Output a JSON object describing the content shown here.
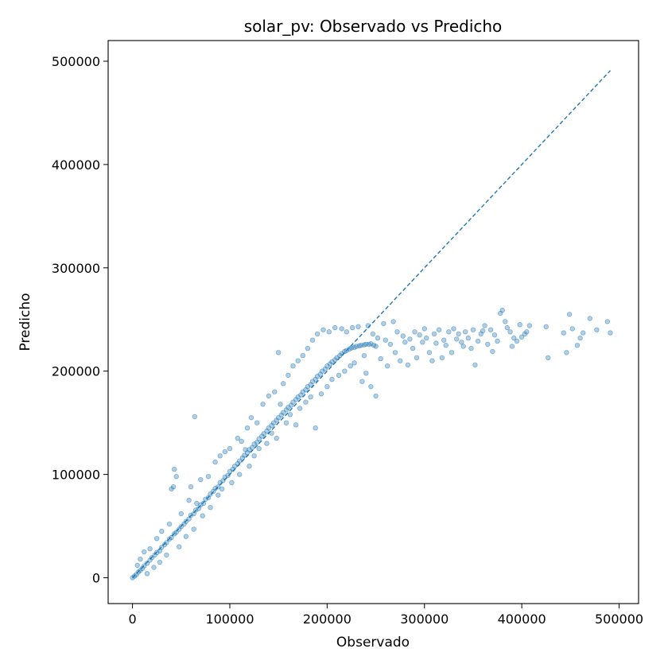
{
  "chart_data": {
    "type": "scatter",
    "title": "solar_pv: Observado vs Predicho",
    "xlabel": "Observado",
    "ylabel": "Predicho",
    "xlim": [
      -25000,
      520000
    ],
    "ylim": [
      -25000,
      520000
    ],
    "xticks": [
      0,
      100000,
      200000,
      300000,
      400000,
      500000
    ],
    "yticks": [
      0,
      100000,
      200000,
      300000,
      400000,
      500000
    ],
    "xtick_labels": [
      "0",
      "100000",
      "200000",
      "300000",
      "400000",
      "500000"
    ],
    "ytick_labels": [
      "0",
      "100000",
      "200000",
      "300000",
      "400000",
      "500000"
    ],
    "grid": false,
    "marker_color": "#1f77b4",
    "marker_alpha": 0.35,
    "reference_line": {
      "style": "dashed",
      "color": "#1f77b4",
      "from": [
        0,
        0
      ],
      "to": [
        491000,
        491000
      ]
    },
    "series": [
      {
        "points": [
          [
            0,
            0
          ],
          [
            2000,
            1500
          ],
          [
            4000,
            3000
          ],
          [
            6000,
            5500
          ],
          [
            8000,
            7000
          ],
          [
            10000,
            9000
          ],
          [
            12000,
            11500
          ],
          [
            15000,
            14000
          ],
          [
            18000,
            17000
          ],
          [
            20000,
            19500
          ],
          [
            23000,
            22000
          ],
          [
            25000,
            24500
          ],
          [
            28000,
            26000
          ],
          [
            30000,
            29500
          ],
          [
            33000,
            32000
          ],
          [
            35000,
            34000
          ],
          [
            38000,
            37500
          ],
          [
            40000,
            39000
          ],
          [
            43000,
            42500
          ],
          [
            45000,
            44000
          ],
          [
            48000,
            47000
          ],
          [
            50000,
            49500
          ],
          [
            53000,
            52000
          ],
          [
            55000,
            54500
          ],
          [
            58000,
            57000
          ],
          [
            60000,
            60500
          ],
          [
            63000,
            62000
          ],
          [
            65000,
            65500
          ],
          [
            68000,
            67000
          ],
          [
            70000,
            70500
          ],
          [
            73000,
            72000
          ],
          [
            75000,
            76000
          ],
          [
            78000,
            77500
          ],
          [
            80000,
            81000
          ],
          [
            83000,
            83500
          ],
          [
            85000,
            86500
          ],
          [
            88000,
            88000
          ],
          [
            90000,
            92000
          ],
          [
            93000,
            94000
          ],
          [
            95000,
            97500
          ],
          [
            98000,
            99000
          ],
          [
            100000,
            103000
          ],
          [
            103000,
            105000
          ],
          [
            105000,
            108000
          ],
          [
            108000,
            110500
          ],
          [
            110000,
            113000
          ],
          [
            113000,
            116000
          ],
          [
            115000,
            118500
          ],
          [
            118000,
            121000
          ],
          [
            120000,
            124000
          ],
          [
            123000,
            126000
          ],
          [
            125000,
            129500
          ],
          [
            128000,
            131000
          ],
          [
            130000,
            134500
          ],
          [
            133000,
            137000
          ],
          [
            135000,
            139500
          ],
          [
            138000,
            142000
          ],
          [
            140000,
            145000
          ],
          [
            143000,
            147500
          ],
          [
            145000,
            150000
          ],
          [
            148000,
            152500
          ],
          [
            150000,
            155000
          ],
          [
            153000,
            157500
          ],
          [
            155000,
            160000
          ],
          [
            158000,
            162500
          ],
          [
            160000,
            165000
          ],
          [
            163000,
            167000
          ],
          [
            165000,
            170000
          ],
          [
            168000,
            172500
          ],
          [
            170000,
            175000
          ],
          [
            173000,
            177000
          ],
          [
            175000,
            180000
          ],
          [
            178000,
            182000
          ],
          [
            180000,
            185000
          ],
          [
            183000,
            187000
          ],
          [
            185000,
            190000
          ],
          [
            188000,
            192000
          ],
          [
            190000,
            195000
          ],
          [
            193000,
            197000
          ],
          [
            195000,
            200000
          ],
          [
            198000,
            202000
          ],
          [
            200000,
            205000
          ],
          [
            203000,
            207000
          ],
          [
            205000,
            209000
          ],
          [
            208000,
            211000
          ],
          [
            210000,
            213000
          ],
          [
            213000,
            215000
          ],
          [
            215000,
            217000
          ],
          [
            218000,
            219000
          ],
          [
            220000,
            220000
          ],
          [
            223000,
            221500
          ],
          [
            225000,
            222500
          ],
          [
            228000,
            223000
          ],
          [
            230000,
            224000
          ],
          [
            233000,
            224500
          ],
          [
            235000,
            225000
          ],
          [
            238000,
            225500
          ],
          [
            240000,
            226000
          ],
          [
            243000,
            226000
          ],
          [
            245000,
            226500
          ],
          [
            248000,
            225000
          ],
          [
            250000,
            224000
          ],
          [
            5000,
            12000
          ],
          [
            8000,
            18000
          ],
          [
            12000,
            25000
          ],
          [
            15000,
            4000
          ],
          [
            18000,
            28000
          ],
          [
            22000,
            10000
          ],
          [
            25000,
            38000
          ],
          [
            28000,
            15000
          ],
          [
            30000,
            45000
          ],
          [
            35000,
            22000
          ],
          [
            38000,
            52000
          ],
          [
            40000,
            86000
          ],
          [
            42000,
            88000
          ],
          [
            43000,
            105000
          ],
          [
            45000,
            98000
          ],
          [
            48000,
            30000
          ],
          [
            50000,
            62000
          ],
          [
            55000,
            40000
          ],
          [
            58000,
            75000
          ],
          [
            60000,
            88000
          ],
          [
            63000,
            47000
          ],
          [
            64000,
            156000
          ],
          [
            66000,
            72000
          ],
          [
            70000,
            95000
          ],
          [
            72000,
            60000
          ],
          [
            78000,
            98000
          ],
          [
            80000,
            68000
          ],
          [
            85000,
            112000
          ],
          [
            88000,
            80000
          ],
          [
            90000,
            118000
          ],
          [
            92000,
            86000
          ],
          [
            95000,
            122000
          ],
          [
            100000,
            125000
          ],
          [
            102000,
            92000
          ],
          [
            108000,
            135000
          ],
          [
            110000,
            100000
          ],
          [
            112000,
            132000
          ],
          [
            116000,
            124000
          ],
          [
            118000,
            145000
          ],
          [
            120000,
            108000
          ],
          [
            122000,
            155000
          ],
          [
            125000,
            118000
          ],
          [
            128000,
            150000
          ],
          [
            130000,
            125000
          ],
          [
            134000,
            168000
          ],
          [
            138000,
            130000
          ],
          [
            140000,
            176000
          ],
          [
            143000,
            140000
          ],
          [
            146000,
            180000
          ],
          [
            148000,
            135000
          ],
          [
            150000,
            218000
          ],
          [
            152000,
            168000
          ],
          [
            155000,
            188000
          ],
          [
            158000,
            150000
          ],
          [
            160000,
            196000
          ],
          [
            162000,
            158000
          ],
          [
            165000,
            205000
          ],
          [
            168000,
            148000
          ],
          [
            170000,
            210000
          ],
          [
            172000,
            164000
          ],
          [
            175000,
            215000
          ],
          [
            178000,
            170000
          ],
          [
            180000,
            222000
          ],
          [
            183000,
            175000
          ],
          [
            185000,
            230000
          ],
          [
            188000,
            145000
          ],
          [
            190000,
            236000
          ],
          [
            194000,
            178000
          ],
          [
            196000,
            240000
          ],
          [
            200000,
            185000
          ],
          [
            202000,
            238000
          ],
          [
            205000,
            192000
          ],
          [
            208000,
            242000
          ],
          [
            212000,
            196000
          ],
          [
            215000,
            241000
          ],
          [
            218000,
            200000
          ],
          [
            220000,
            238000
          ],
          [
            224000,
            205000
          ],
          [
            226000,
            242000
          ],
          [
            228000,
            208000
          ],
          [
            232000,
            243000
          ],
          [
            236000,
            190000
          ],
          [
            238000,
            215000
          ],
          [
            240000,
            198000
          ],
          [
            242000,
            244000
          ],
          [
            245000,
            185000
          ],
          [
            247000,
            236000
          ],
          [
            250000,
            176000
          ],
          [
            252000,
            232000
          ],
          [
            255000,
            212000
          ],
          [
            258000,
            246000
          ],
          [
            260000,
            230000
          ],
          [
            262000,
            205000
          ],
          [
            265000,
            226000
          ],
          [
            268000,
            248000
          ],
          [
            270000,
            218000
          ],
          [
            272000,
            238000
          ],
          [
            275000,
            210000
          ],
          [
            278000,
            234000
          ],
          [
            280000,
            228000
          ],
          [
            283000,
            206000
          ],
          [
            285000,
            231000
          ],
          [
            288000,
            222000
          ],
          [
            290000,
            238000
          ],
          [
            292000,
            213000
          ],
          [
            295000,
            235000
          ],
          [
            298000,
            228000
          ],
          [
            300000,
            241000
          ],
          [
            302000,
            232000
          ],
          [
            305000,
            218000
          ],
          [
            308000,
            210000
          ],
          [
            310000,
            236000
          ],
          [
            312000,
            227000
          ],
          [
            315000,
            240000
          ],
          [
            318000,
            213000
          ],
          [
            320000,
            230000
          ],
          [
            322000,
            225000
          ],
          [
            325000,
            238000
          ],
          [
            328000,
            218000
          ],
          [
            330000,
            241000
          ],
          [
            333000,
            231000
          ],
          [
            335000,
            236000
          ],
          [
            338000,
            228000
          ],
          [
            340000,
            224000
          ],
          [
            342000,
            238000
          ],
          [
            345000,
            232000
          ],
          [
            348000,
            222000
          ],
          [
            350000,
            240000
          ],
          [
            352000,
            206000
          ],
          [
            355000,
            229000
          ],
          [
            358000,
            236000
          ],
          [
            360000,
            239000
          ],
          [
            362000,
            244000
          ],
          [
            365000,
            226000
          ],
          [
            368000,
            240000
          ],
          [
            370000,
            219000
          ],
          [
            372000,
            235000
          ],
          [
            375000,
            229000
          ],
          [
            378000,
            256000
          ],
          [
            380000,
            259000
          ],
          [
            383000,
            248000
          ],
          [
            385000,
            242000
          ],
          [
            388000,
            238000
          ],
          [
            390000,
            224000
          ],
          [
            392000,
            232000
          ],
          [
            395000,
            229000
          ],
          [
            398000,
            245000
          ],
          [
            400000,
            233000
          ],
          [
            403000,
            236000
          ],
          [
            405000,
            238000
          ],
          [
            408000,
            244000
          ],
          [
            425000,
            243000
          ],
          [
            427000,
            213000
          ],
          [
            443000,
            237000
          ],
          [
            446000,
            218000
          ],
          [
            449000,
            255000
          ],
          [
            452000,
            241000
          ],
          [
            457000,
            225000
          ],
          [
            460000,
            232000
          ],
          [
            463000,
            237000
          ],
          [
            470000,
            251000
          ],
          [
            477000,
            240000
          ],
          [
            488000,
            248000
          ],
          [
            491000,
            237000
          ]
        ]
      }
    ]
  }
}
